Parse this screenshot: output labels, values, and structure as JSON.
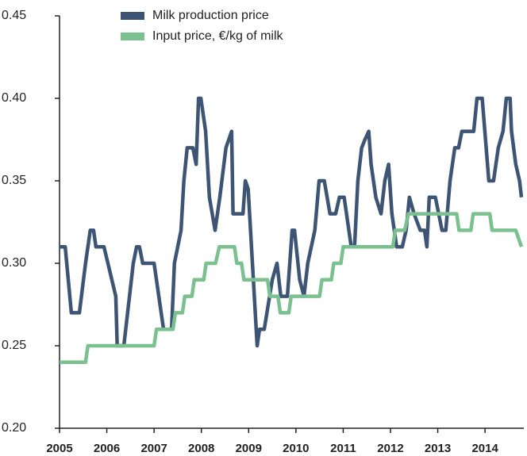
{
  "chart_data": {
    "type": "line",
    "xlim": [
      2005,
      2014.77
    ],
    "xticks": [
      2005,
      2006,
      2007,
      2008,
      2009,
      2010,
      2011,
      2012,
      2013,
      2014
    ],
    "ylim": [
      0.2,
      0.45
    ],
    "yticks": [
      {
        "value": 0.2,
        "label": "0.20"
      },
      0.25,
      {
        "value": 0.3,
        "label": "0.30"
      },
      0.35,
      {
        "value": 0.4,
        "label": "0.40"
      },
      0.45
    ],
    "series": [
      {
        "name": "Milk production price",
        "color": "#3d5475",
        "x": [
          2005.0,
          2005.12,
          2005.25,
          2005.42,
          2005.55,
          2005.65,
          2005.72,
          2005.77,
          2005.94,
          2006.19,
          2006.22,
          2006.36,
          2006.56,
          2006.63,
          2006.69,
          2006.76,
          2007.0,
          2007.1,
          2007.2,
          2007.37,
          2007.43,
          2007.57,
          2007.63,
          2007.7,
          2007.82,
          2007.89,
          2007.94,
          2007.99,
          2008.09,
          2008.17,
          2008.29,
          2008.39,
          2008.52,
          2008.64,
          2008.67,
          2008.88,
          2008.93,
          2008.99,
          2009.08,
          2009.18,
          2009.23,
          2009.33,
          2009.5,
          2009.6,
          2009.68,
          2009.82,
          2009.92,
          2009.97,
          2010.08,
          2010.17,
          2010.25,
          2010.4,
          2010.49,
          2010.6,
          2010.72,
          2010.84,
          2010.92,
          2011.02,
          2011.17,
          2011.24,
          2011.31,
          2011.39,
          2011.46,
          2011.54,
          2011.59,
          2011.69,
          2011.8,
          2011.88,
          2011.96,
          2012.03,
          2012.13,
          2012.25,
          2012.33,
          2012.4,
          2012.5,
          2012.63,
          2012.72,
          2012.77,
          2012.82,
          2012.95,
          2013.09,
          2013.17,
          2013.26,
          2013.36,
          2013.44,
          2013.51,
          2013.76,
          2013.83,
          2013.94,
          2014.08,
          2014.18,
          2014.28,
          2014.38,
          2014.45,
          2014.53,
          2014.56,
          2014.65,
          2014.73,
          2014.77
        ],
        "values": [
          0.31,
          0.31,
          0.27,
          0.27,
          0.3,
          0.32,
          0.32,
          0.31,
          0.31,
          0.28,
          0.25,
          0.25,
          0.3,
          0.31,
          0.31,
          0.3,
          0.3,
          0.28,
          0.26,
          0.26,
          0.3,
          0.32,
          0.35,
          0.37,
          0.37,
          0.36,
          0.4,
          0.4,
          0.38,
          0.34,
          0.32,
          0.34,
          0.37,
          0.38,
          0.33,
          0.33,
          0.35,
          0.345,
          0.3,
          0.25,
          0.26,
          0.26,
          0.29,
          0.3,
          0.28,
          0.28,
          0.32,
          0.32,
          0.29,
          0.28,
          0.3,
          0.32,
          0.35,
          0.35,
          0.33,
          0.33,
          0.34,
          0.34,
          0.31,
          0.31,
          0.35,
          0.37,
          0.375,
          0.38,
          0.36,
          0.34,
          0.33,
          0.35,
          0.36,
          0.33,
          0.31,
          0.31,
          0.32,
          0.34,
          0.33,
          0.32,
          0.32,
          0.31,
          0.34,
          0.34,
          0.32,
          0.32,
          0.35,
          0.37,
          0.37,
          0.38,
          0.38,
          0.4,
          0.4,
          0.35,
          0.35,
          0.37,
          0.38,
          0.4,
          0.4,
          0.38,
          0.36,
          0.35,
          0.34
        ]
      },
      {
        "name": "Input price, €/kg of milk",
        "color": "#7bc08f",
        "x": [
          2005.0,
          2005.55,
          2005.6,
          2007.0,
          2007.05,
          2007.4,
          2007.45,
          2007.6,
          2007.65,
          2007.8,
          2007.85,
          2008.05,
          2008.1,
          2008.3,
          2008.38,
          2008.7,
          2008.75,
          2008.85,
          2008.9,
          2009.4,
          2009.45,
          2009.62,
          2009.67,
          2009.85,
          2009.9,
          2010.5,
          2010.55,
          2010.75,
          2010.8,
          2010.95,
          2011.0,
          2012.05,
          2012.1,
          2012.3,
          2012.38,
          2013.4,
          2013.45,
          2013.7,
          2013.75,
          2014.1,
          2014.15,
          2014.65,
          2014.77
        ],
        "values": [
          0.24,
          0.24,
          0.25,
          0.25,
          0.26,
          0.26,
          0.27,
          0.27,
          0.28,
          0.28,
          0.29,
          0.29,
          0.3,
          0.3,
          0.31,
          0.31,
          0.3,
          0.3,
          0.29,
          0.29,
          0.28,
          0.28,
          0.27,
          0.27,
          0.28,
          0.28,
          0.29,
          0.29,
          0.3,
          0.3,
          0.31,
          0.31,
          0.32,
          0.32,
          0.33,
          0.33,
          0.32,
          0.32,
          0.33,
          0.33,
          0.32,
          0.32,
          0.31
        ]
      }
    ]
  }
}
